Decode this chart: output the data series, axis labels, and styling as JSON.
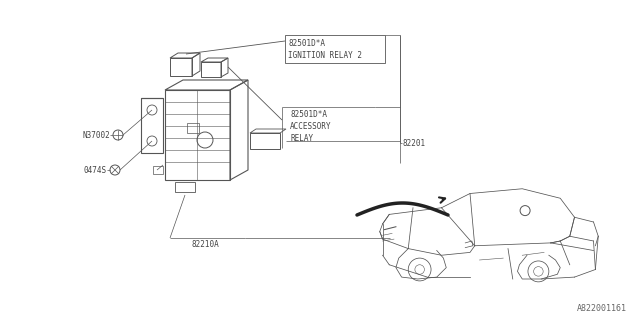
{
  "bg_color": "#ffffff",
  "line_color": "#444444",
  "diagram_color": "#555555",
  "watermark": "A822001161",
  "labels": {
    "ignition_relay": "82501D*A\nIGNITION RELAY 2",
    "accessory_relay": "82501D*A\nACCESSORY\nRELAY",
    "part_82201": "82201",
    "part_82210A": "82210A",
    "part_N37002": "N37002",
    "part_0474S": "0474S"
  },
  "figsize": [
    6.4,
    3.2
  ],
  "dpi": 100
}
